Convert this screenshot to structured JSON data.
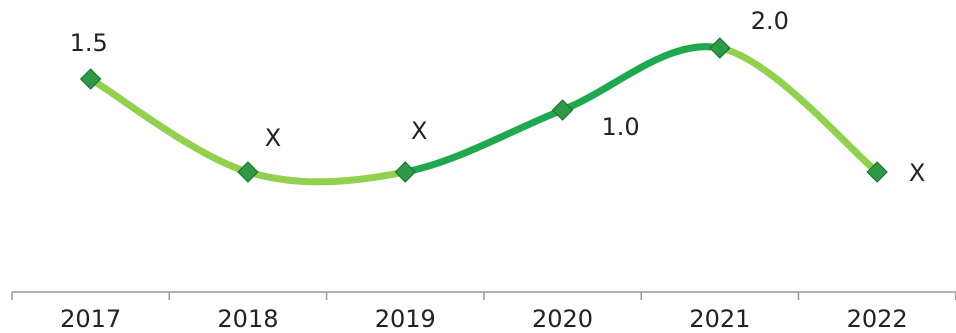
{
  "chart_data": {
    "type": "line",
    "categories": [
      "2017",
      "2018",
      "2019",
      "2020",
      "2021",
      "2022"
    ],
    "series": [
      {
        "values": [
          1.5,
          0,
          0,
          1.0,
          2.0,
          0
        ],
        "value_labels": [
          "1.5",
          "X",
          "X",
          "1.0",
          "2.0",
          "X"
        ],
        "color": "#1fa84e",
        "segment_colors": [
          "#92d050",
          "#92d050",
          "#1fa84e",
          "#1fa84e",
          "#92d050"
        ],
        "marker_color": "#2e9a45"
      }
    ]
  }
}
